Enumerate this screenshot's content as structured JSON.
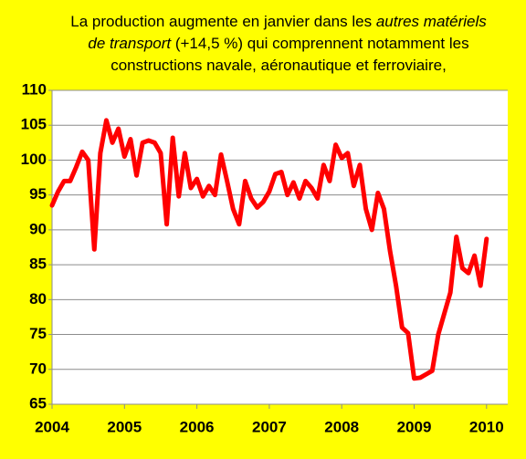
{
  "chart_data": {
    "type": "line",
    "title": [
      [
        "La production augmente en janvier dans les ",
        "autres matériels"
      ],
      [
        "de transport",
        " (+14,5 %) qui comprennent notamment les"
      ],
      [
        "constructions navale, aéronautique et ferroviaire,"
      ]
    ],
    "categories": [
      "2004",
      null,
      null,
      null,
      null,
      null,
      null,
      null,
      null,
      null,
      null,
      null,
      "2005",
      null,
      null,
      null,
      null,
      null,
      null,
      null,
      null,
      null,
      null,
      null,
      "2006",
      null,
      null,
      null,
      null,
      null,
      null,
      null,
      null,
      null,
      null,
      null,
      "2007",
      null,
      null,
      null,
      null,
      null,
      null,
      null,
      null,
      null,
      null,
      null,
      "2008",
      null,
      null,
      null,
      null,
      null,
      null,
      null,
      null,
      null,
      null,
      null,
      "2009",
      null,
      null,
      null,
      null,
      null,
      null,
      null,
      null,
      null,
      null,
      null,
      "2010"
    ],
    "series": [
      {
        "color": "#ff0000",
        "values": [
          93.5,
          95.5,
          97,
          97,
          99,
          101.2,
          100,
          87.2,
          101,
          105.7,
          102.5,
          104.5,
          100.5,
          103,
          97.8,
          102.5,
          102.8,
          102.5,
          101,
          90.8,
          103.2,
          94.8,
          101,
          96,
          97.3,
          94.8,
          96.3,
          95,
          100.8,
          97,
          93,
          90.8,
          97,
          94.5,
          93.2,
          94,
          95.5,
          98,
          98.3,
          95,
          96.8,
          94.5,
          97,
          96,
          94.5,
          99.3,
          97,
          102.2,
          100.3,
          101,
          96.3,
          99.3,
          93,
          90,
          95.3,
          93,
          87,
          82,
          76,
          75.2,
          68.7,
          68.8,
          69.3,
          69.8,
          75,
          78,
          81,
          89,
          84.5,
          83.8,
          86.3,
          82,
          88.7
        ]
      }
    ],
    "ylim": [
      65,
      110
    ],
    "yticks": [
      65,
      70,
      75,
      80,
      85,
      90,
      95,
      100,
      105,
      110
    ],
    "grid": true
  }
}
